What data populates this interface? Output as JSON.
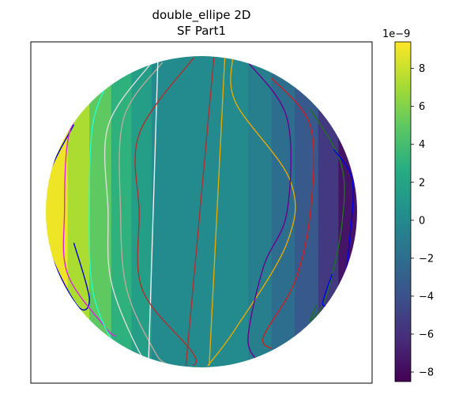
{
  "chart_data": {
    "type": "heatmap",
    "title_line1": "double_ellipe 2D",
    "title_line2": "SF Part1",
    "x_ticks_shown": false,
    "y_ticks_shown": false,
    "colorbar": {
      "cmap": "viridis",
      "min": -8.5,
      "max": 9.4,
      "exponent_label": "1e−9",
      "ticks": [
        {
          "value": 8,
          "label": "8"
        },
        {
          "value": 6,
          "label": "6"
        },
        {
          "value": 4,
          "label": "4"
        },
        {
          "value": 2,
          "label": "2"
        },
        {
          "value": 0,
          "label": "0"
        },
        {
          "value": -2,
          "label": "−2"
        },
        {
          "value": -4,
          "label": "−4"
        },
        {
          "value": -6,
          "label": "−6"
        },
        {
          "value": -8,
          "label": "−8"
        }
      ]
    },
    "field": {
      "shape": "disk",
      "bands": [
        {
          "x_from": -1.0,
          "x_to": -0.86,
          "value": 9.0
        },
        {
          "x_from": -0.86,
          "x_to": -0.72,
          "value": 7.2
        },
        {
          "x_from": -0.72,
          "x_to": -0.58,
          "value": 5.0
        },
        {
          "x_from": -0.58,
          "x_to": -0.45,
          "value": 3.0
        },
        {
          "x_from": -0.45,
          "x_to": -0.32,
          "value": 1.5
        },
        {
          "x_from": -0.32,
          "x_to": 0.3,
          "value": 0.0
        },
        {
          "x_from": 0.3,
          "x_to": 0.45,
          "value": -0.8
        },
        {
          "x_from": 0.45,
          "x_to": 0.6,
          "value": -2.0
        },
        {
          "x_from": 0.6,
          "x_to": 0.75,
          "value": -3.5
        },
        {
          "x_from": 0.75,
          "x_to": 0.88,
          "value": -5.5
        },
        {
          "x_from": 0.88,
          "x_to": 1.0,
          "value": -7.5
        }
      ]
    },
    "streamlines": [
      {
        "color": "#0000cc",
        "x": [
          -0.82,
          -0.99,
          -0.99,
          -0.8,
          -0.72,
          -0.82
        ],
        "y": [
          0.56,
          0.2,
          -0.2,
          -0.6,
          -0.56,
          -0.2
        ]
      },
      {
        "color": "#e020e0",
        "x": [
          -0.7,
          -0.85,
          -0.88,
          -0.86,
          -0.62,
          -0.55
        ],
        "y": [
          0.74,
          0.5,
          0.0,
          -0.4,
          -0.74,
          -0.8
        ]
      },
      {
        "color": "#20ffcc",
        "x": [
          -0.6,
          -0.7,
          -0.72,
          -0.7,
          -0.58,
          -0.48
        ],
        "y": [
          0.84,
          0.55,
          0.0,
          -0.5,
          -0.82,
          -0.92
        ]
      },
      {
        "color": "#dddddd",
        "x": [
          -0.32,
          -0.6,
          -0.6,
          -0.58,
          -0.4,
          -0.3
        ],
        "y": [
          0.96,
          0.55,
          0.0,
          -0.45,
          -0.9,
          -0.98
        ]
      },
      {
        "color": "#bbaa99",
        "x": [
          -0.25,
          -0.5,
          -0.52,
          -0.48,
          -0.3,
          -0.22
        ],
        "y": [
          0.96,
          0.6,
          0.0,
          -0.5,
          -0.9,
          -0.98
        ]
      },
      {
        "color": "#f0f0f0",
        "x": [
          -0.28,
          -0.34
        ],
        "y": [
          0.97,
          -0.97
        ]
      },
      {
        "color": "#b03030",
        "x": [
          -0.05,
          -0.4,
          -0.4,
          -0.38,
          -0.06,
          -0.05
        ],
        "y": [
          0.99,
          0.5,
          0.0,
          -0.5,
          -0.9,
          -0.99
        ]
      },
      {
        "color": "#b03030",
        "x": [
          0.08,
          -0.1
        ],
        "y": [
          0.99,
          -0.99
        ]
      },
      {
        "color": "#e6a800",
        "x": [
          0.15,
          0.05
        ],
        "y": [
          0.99,
          -0.99
        ]
      },
      {
        "color": "#e6a800",
        "x": [
          0.2,
          0.22,
          0.57,
          0.55,
          0.22,
          0.04
        ],
        "y": [
          0.99,
          0.7,
          0.2,
          -0.2,
          -0.75,
          -0.99
        ]
      },
      {
        "color": "#6a0090",
        "x": [
          0.3,
          0.55,
          0.55,
          0.4,
          0.3,
          0.35
        ],
        "y": [
          0.96,
          0.6,
          0.0,
          -0.35,
          -0.8,
          -0.95
        ]
      },
      {
        "color": "#cc2020",
        "x": [
          0.45,
          0.7,
          0.7,
          0.6,
          0.4,
          0.45
        ],
        "y": [
          0.86,
          0.55,
          0.0,
          -0.45,
          -0.8,
          -0.88
        ]
      },
      {
        "color": "#207020",
        "x": [
          0.7,
          0.9,
          0.9,
          0.8,
          0.7,
          0.74
        ],
        "y": [
          0.66,
          0.3,
          -0.1,
          -0.55,
          -0.7,
          -0.6
        ]
      },
      {
        "color": "#0000ee",
        "x": [
          0.85,
          0.97,
          0.95,
          0.9,
          0.78,
          0.84
        ],
        "y": [
          0.4,
          0.2,
          -0.2,
          -0.52,
          -0.6,
          -0.4
        ]
      }
    ]
  }
}
